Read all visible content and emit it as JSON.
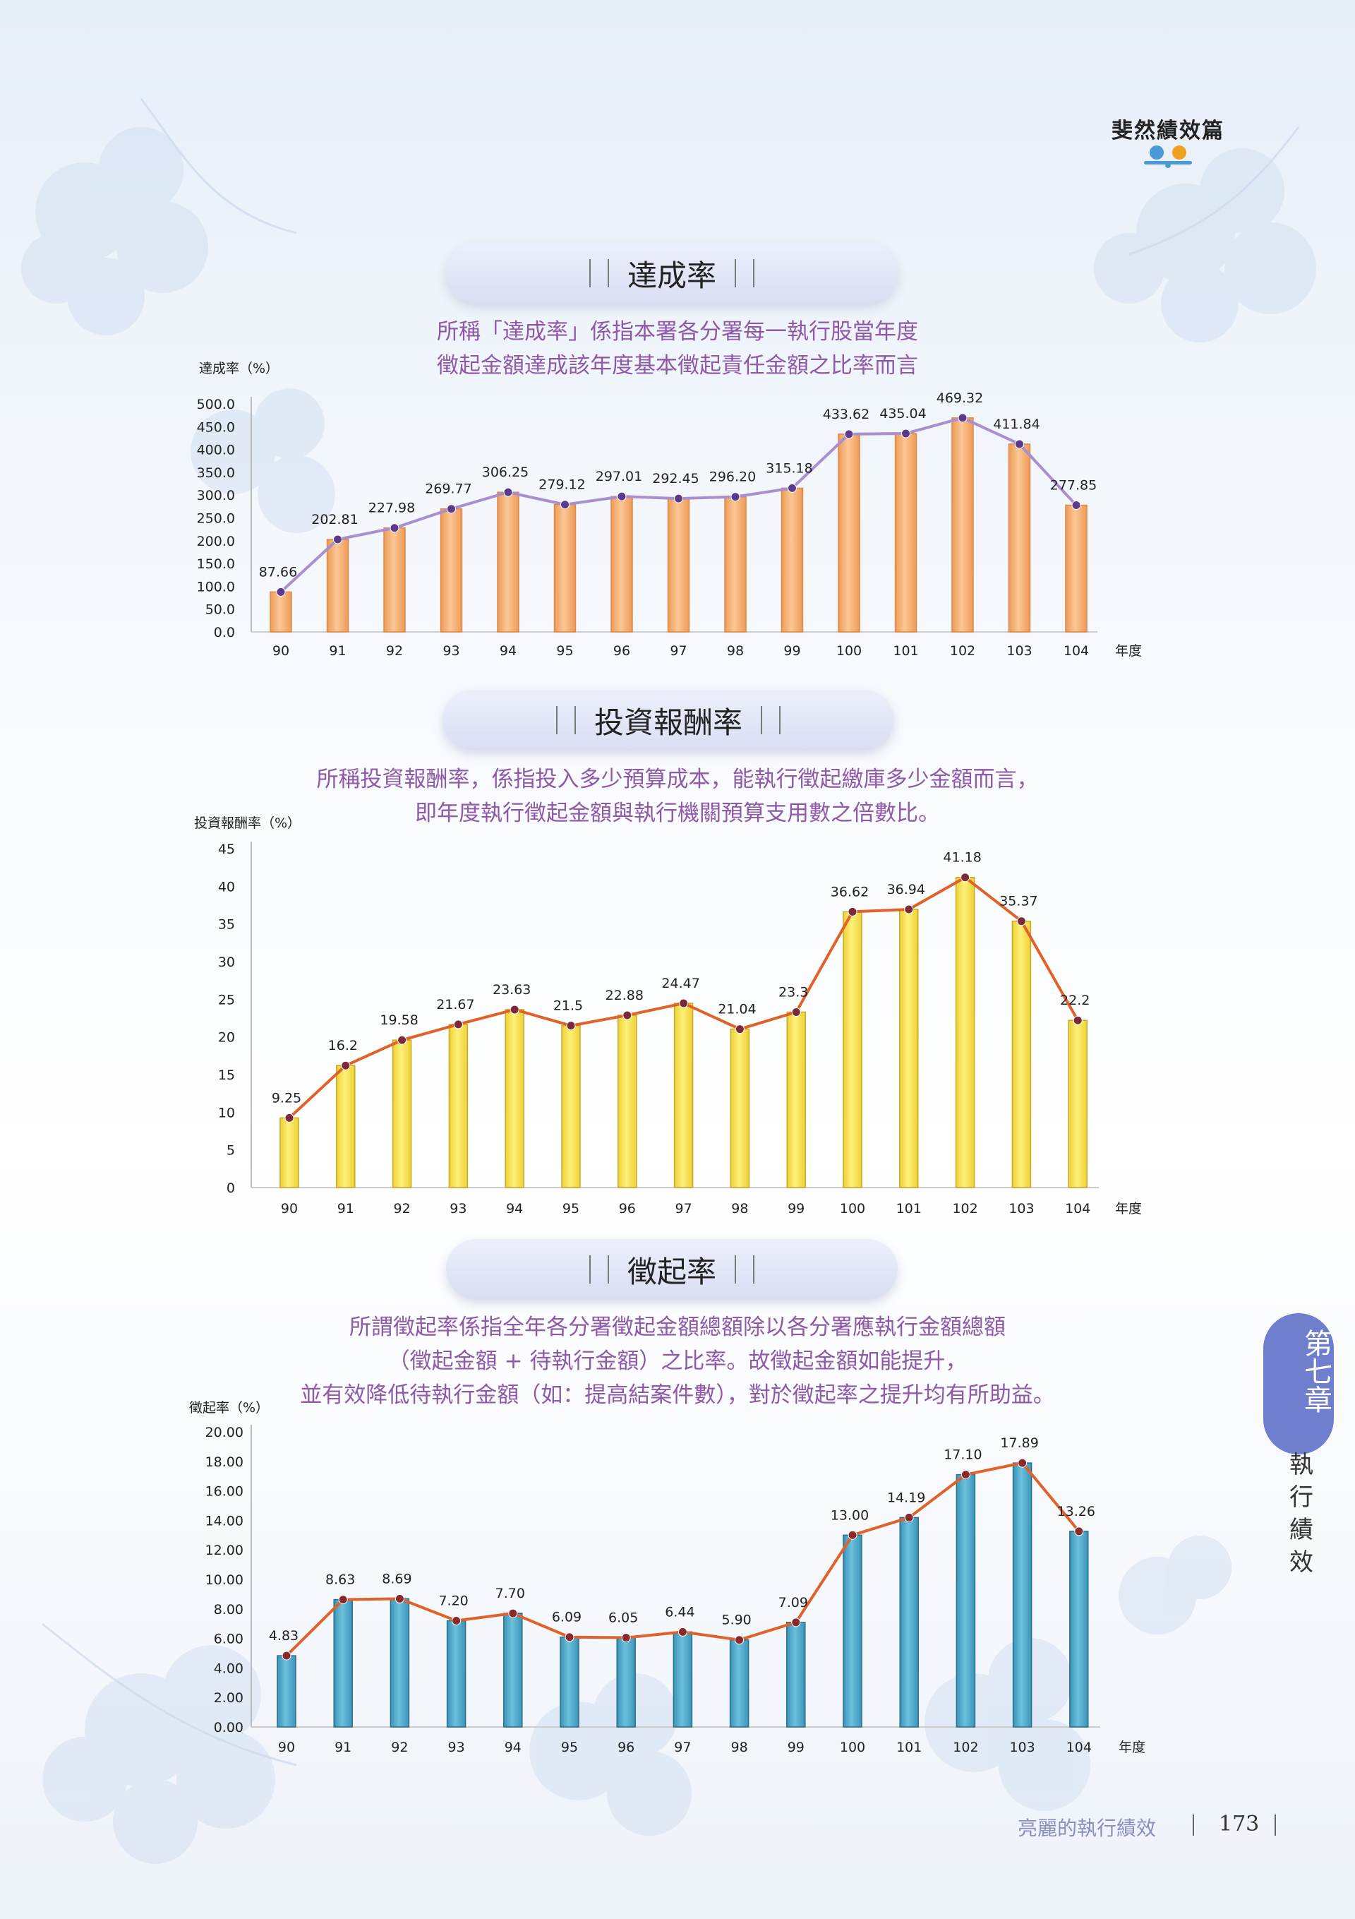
{
  "header": {
    "section_title": "斐然績效篇"
  },
  "sections": [
    {
      "title": "達成率",
      "description": [
        "所稱「達成率」係指本署各分署每一執行股當年度",
        "徵起金額達成該年度基本徵起責任金額之比率而言"
      ]
    },
    {
      "title": "投資報酬率",
      "description": [
        "所稱投資報酬率，係指投入多少預算成本，能執行徵起繳庫多少金額而言，",
        "即年度執行徵起金額與執行機關預算支用數之倍數比。"
      ]
    },
    {
      "title": "徵起率",
      "description": [
        "所謂徵起率係指全年各分署徵起金額總額除以各分署應執行金額總額",
        "（徵起金額 + 待執行金額）之比率。故徵起金額如能提升，",
        "並有效降低待執行金額（如：提高結案件數），對於徵起率之提升均有所助益。"
      ]
    }
  ],
  "chart_data": [
    {
      "type": "bar",
      "ylabel": "達成率（%）",
      "xlabel": "年度",
      "categories": [
        "90",
        "91",
        "92",
        "93",
        "94",
        "95",
        "96",
        "97",
        "98",
        "99",
        "100",
        "101",
        "102",
        "103",
        "104"
      ],
      "values": [
        87.66,
        202.81,
        227.98,
        269.77,
        306.25,
        279.12,
        297.01,
        292.45,
        296.2,
        315.18,
        433.62,
        435.04,
        469.32,
        411.84,
        277.85
      ],
      "value_labels": [
        "87.66",
        "202.81",
        "227.98",
        "269.77",
        "306.25",
        "279.12",
        "297.01",
        "292.45",
        "296.20",
        "315.18",
        "433.62",
        "435.04",
        "469.32",
        "411.84",
        "277.85"
      ],
      "yticks": [
        "0.0",
        "50.0",
        "100.0",
        "150.0",
        "200.0",
        "250.0",
        "300.0",
        "350.0",
        "400.0",
        "450.0",
        "500.0"
      ],
      "ylim": [
        0,
        500
      ],
      "line_overlay": true,
      "colors": {
        "bar": "#f5ad72",
        "bar_edge": "#d98a4c",
        "line": "#a78fd0",
        "marker": "#5b3a8e"
      }
    },
    {
      "type": "bar",
      "ylabel": "投資報酬率（%）",
      "xlabel": "年度",
      "categories": [
        "90",
        "91",
        "92",
        "93",
        "94",
        "95",
        "96",
        "97",
        "98",
        "99",
        "100",
        "101",
        "102",
        "103",
        "104"
      ],
      "values": [
        9.25,
        16.2,
        19.58,
        21.67,
        23.63,
        21.5,
        22.88,
        24.47,
        21.04,
        23.3,
        36.62,
        36.94,
        41.18,
        35.37,
        22.2
      ],
      "value_labels": [
        "9.25",
        "16.2",
        "19.58",
        "21.67",
        "23.63",
        "21.5",
        "22.88",
        "24.47",
        "21.04",
        "23.3",
        "36.62",
        "36.94",
        "41.18",
        "35.37",
        "22.2"
      ],
      "yticks": [
        "0",
        "5",
        "10",
        "15",
        "20",
        "25",
        "30",
        "35",
        "40",
        "45"
      ],
      "ylim": [
        0,
        45
      ],
      "line_overlay": true,
      "colors": {
        "bar": "#f5e04a",
        "bar_edge": "#c9a82a",
        "line": "#e0622a",
        "marker": "#7a2a3a"
      }
    },
    {
      "type": "bar",
      "ylabel": "徵起率（%）",
      "xlabel": "年度",
      "categories": [
        "90",
        "91",
        "92",
        "93",
        "94",
        "95",
        "96",
        "97",
        "98",
        "99",
        "100",
        "101",
        "102",
        "103",
        "104"
      ],
      "values": [
        4.83,
        8.63,
        8.69,
        7.2,
        7.7,
        6.09,
        6.05,
        6.44,
        5.9,
        7.09,
        13.0,
        14.19,
        17.1,
        17.89,
        13.26
      ],
      "value_labels": [
        "4.83",
        "8.63",
        "8.69",
        "7.20",
        "7.70",
        "6.09",
        "6.05",
        "6.44",
        "5.90",
        "7.09",
        "13.00",
        "14.19",
        "17.10",
        "17.89",
        "13.26"
      ],
      "yticks": [
        "0.00",
        "2.00",
        "4.00",
        "6.00",
        "8.00",
        "10.00",
        "12.00",
        "14.00",
        "16.00",
        "18.00",
        "20.00"
      ],
      "ylim": [
        0,
        20
      ],
      "line_overlay": true,
      "colors": {
        "bar": "#4aa4c4",
        "bar_edge": "#2a6f8c",
        "line": "#e0622a",
        "marker": "#8a2a2a"
      }
    }
  ],
  "side_tab": {
    "chapter": "第七章",
    "name": "執行績效"
  },
  "footer": {
    "text": "亮麗的執行績效",
    "page": "173"
  }
}
